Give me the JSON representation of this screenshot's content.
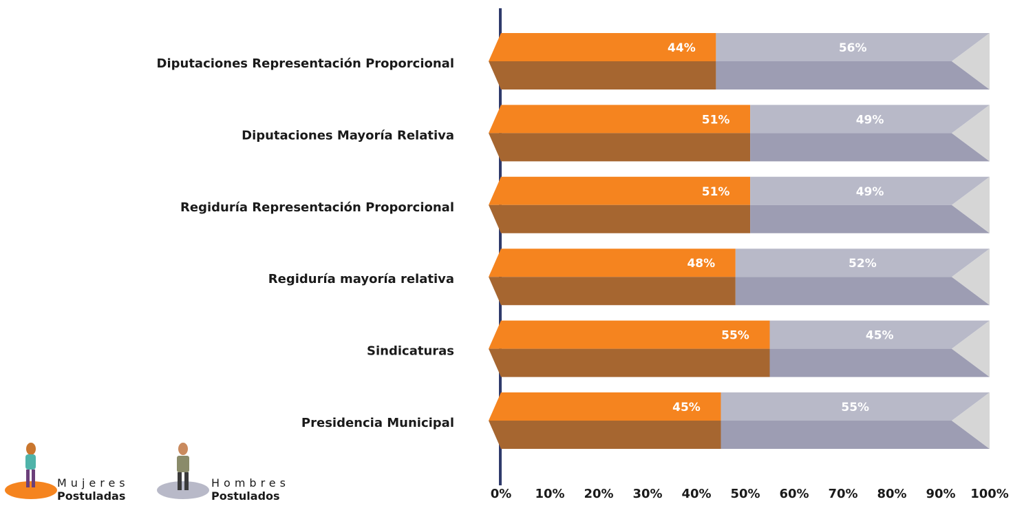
{
  "chart_data": {
    "type": "stacked-bar",
    "categories": [
      "Diputaciones Representación Proporcional",
      "Diputaciones Mayoría Relativa",
      "Regiduría  Representación Proporcional",
      "Regiduría mayoría relativa",
      "Sindicaturas",
      "Presidencia Municipal"
    ],
    "series": [
      {
        "name": "Mujeres Postuladas",
        "color": "#f5841f",
        "dark_color": "#a66630",
        "values": [
          44,
          51,
          51,
          48,
          55,
          45
        ],
        "value_labels": [
          "44%",
          "51%",
          "51%",
          "48%",
          "55%",
          "45%"
        ]
      },
      {
        "name": "Hombres Postulados",
        "color": "#b8b9c8",
        "dark_color": "#9d9db3",
        "values": [
          56,
          49,
          49,
          52,
          45,
          55
        ],
        "value_labels": [
          "56%",
          "49%",
          "49%",
          "52%",
          "45%",
          "55%"
        ]
      }
    ],
    "xlim": [
      0,
      100
    ],
    "xticks": [
      {
        "value": 0,
        "label": "0%"
      },
      {
        "value": 10,
        "label": "10%"
      },
      {
        "value": 20,
        "label": "20%"
      },
      {
        "value": 30,
        "label": "30%"
      },
      {
        "value": 40,
        "label": "40%"
      },
      {
        "value": 50,
        "label": "50%"
      },
      {
        "value": 60,
        "label": "60%"
      },
      {
        "value": 70,
        "label": "70%"
      },
      {
        "value": 80,
        "label": "80%"
      },
      {
        "value": 90,
        "label": "90%"
      },
      {
        "value": 100,
        "label": "100%"
      }
    ]
  }
}
